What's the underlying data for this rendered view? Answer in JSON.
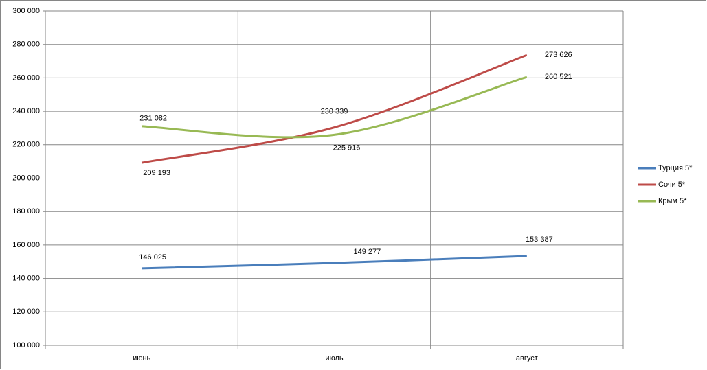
{
  "chart_data": {
    "type": "line",
    "categories": [
      "июнь",
      "июль",
      "август"
    ],
    "series": [
      {
        "name": "Турция 5*",
        "color": "#4a7ebb",
        "values": [
          146025,
          149277,
          153387
        ],
        "value_labels": [
          "146 025",
          "149 277",
          "153 387"
        ]
      },
      {
        "name": "Сочи 5*",
        "color": "#be4b48",
        "values": [
          209193,
          230339,
          273626
        ],
        "value_labels": [
          "209 193",
          "230 339",
          "273 626"
        ]
      },
      {
        "name": "Крым 5*",
        "color": "#98b954",
        "values": [
          231082,
          225916,
          260521
        ],
        "value_labels": [
          "231 082",
          "225 916",
          "260 521"
        ]
      }
    ],
    "ylim": [
      100000,
      300000
    ],
    "yticks": [
      {
        "value": 100000,
        "label": "100 000"
      },
      {
        "value": 120000,
        "label": "120 000"
      },
      {
        "value": 140000,
        "label": "140 000"
      },
      {
        "value": 160000,
        "label": "160 000"
      },
      {
        "value": 180000,
        "label": "180 000"
      },
      {
        "value": 200000,
        "label": "200 000"
      },
      {
        "value": 220000,
        "label": "220 000"
      },
      {
        "value": 240000,
        "label": "240 000"
      },
      {
        "value": 260000,
        "label": "260 000"
      },
      {
        "value": 280000,
        "label": "280 000"
      },
      {
        "value": 300000,
        "label": "300 000"
      }
    ],
    "grid": true,
    "smooth": true,
    "legend": "right"
  }
}
